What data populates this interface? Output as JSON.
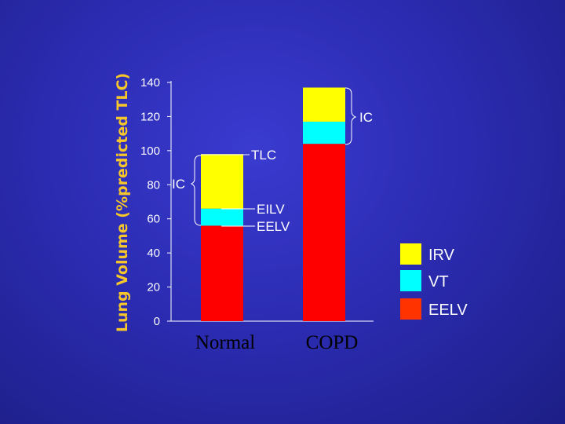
{
  "chart_data": {
    "type": "bar",
    "stacked": true,
    "ylabel": "Lung Volume (%predicted TLC)",
    "ylim": [
      0,
      140
    ],
    "yticks": [
      0,
      20,
      40,
      60,
      80,
      100,
      120,
      140
    ],
    "categories": [
      "Normal",
      "COPD"
    ],
    "series": [
      {
        "name": "EELV",
        "color": "#ff0000",
        "values": [
          56,
          104
        ]
      },
      {
        "name": "VT",
        "color": "#00ffff",
        "values": [
          10,
          13
        ]
      },
      {
        "name": "IRV",
        "color": "#ffff00",
        "values": [
          32,
          20
        ]
      }
    ],
    "legend": {
      "placement": "right",
      "items": [
        {
          "label": "IRV",
          "color": "#ffff00"
        },
        {
          "label": "VT",
          "color": "#00ffff"
        },
        {
          "label": "EELV",
          "color": "#ff0000"
        }
      ]
    },
    "annotations": {
      "tlc": "TLC",
      "ic_normal": "IC",
      "ic_copd": "IC",
      "eilv": "EILV",
      "eelv": "EELV"
    }
  }
}
